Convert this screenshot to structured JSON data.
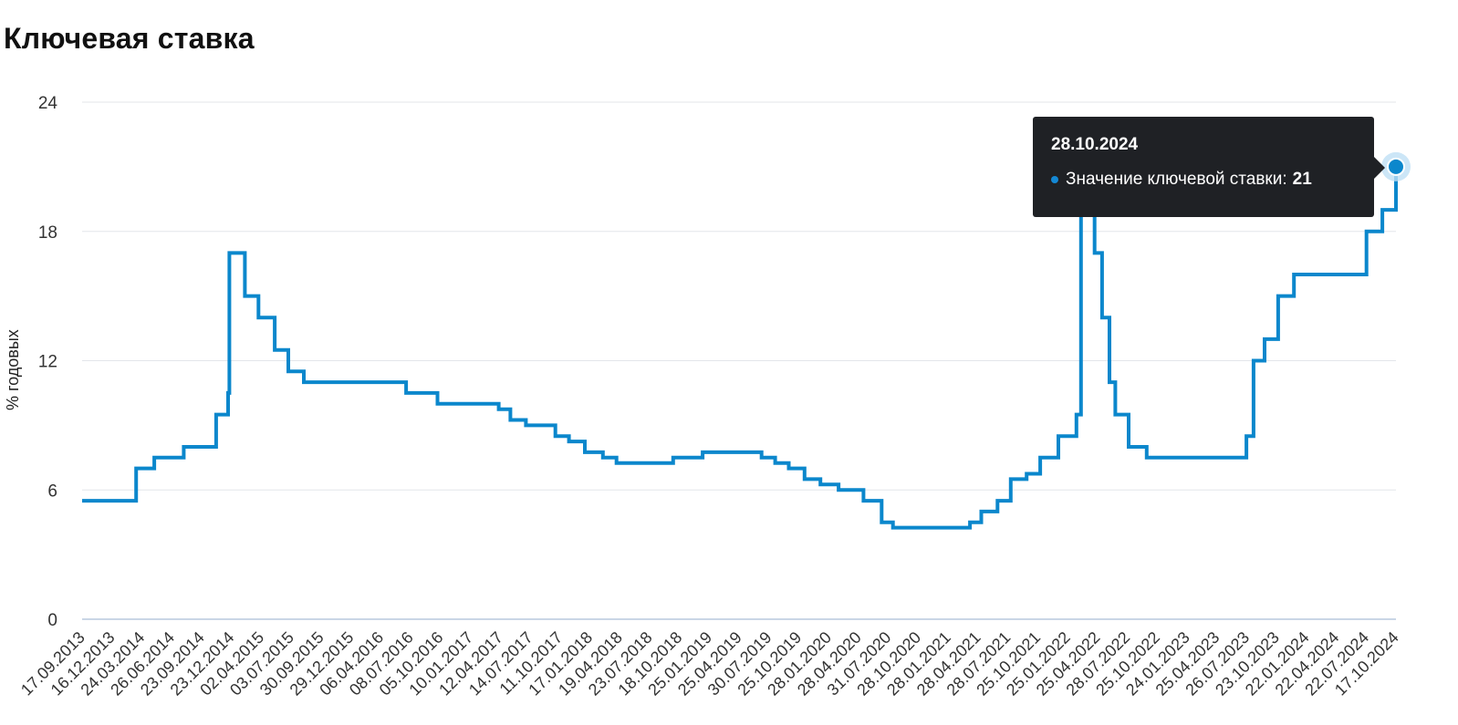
{
  "chart_data": {
    "type": "line",
    "title": "Ключевая ставка",
    "ylabel": "% годовых",
    "ylim": [
      0,
      24
    ],
    "yticks": [
      0,
      6,
      12,
      18,
      24
    ],
    "xlim": [
      "2013-09-17",
      "2024-10-28"
    ],
    "grid": true,
    "line_color": "#0b87cc",
    "step": true,
    "xtick_labels": [
      "17.09.2013",
      "16.12.2013",
      "24.03.2014",
      "26.06.2014",
      "23.09.2014",
      "23.12.2014",
      "02.04.2015",
      "03.07.2015",
      "30.09.2015",
      "29.12.2015",
      "06.04.2016",
      "08.07.2016",
      "05.10.2016",
      "10.01.2017",
      "12.04.2017",
      "14.07.2017",
      "11.10.2017",
      "17.01.2018",
      "19.04.2018",
      "23.07.2018",
      "18.10.2018",
      "25.01.2019",
      "25.04.2019",
      "30.07.2019",
      "25.10.2019",
      "28.01.2020",
      "28.04.2020",
      "31.07.2020",
      "28.10.2020",
      "28.01.2021",
      "28.04.2021",
      "28.07.2021",
      "25.10.2021",
      "25.01.2022",
      "25.04.2022",
      "28.07.2022",
      "25.10.2022",
      "24.01.2023",
      "25.04.2023",
      "26.07.2023",
      "23.10.2023",
      "22.01.2024",
      "22.04.2024",
      "22.07.2024",
      "17.10.2024"
    ],
    "series": [
      {
        "points": [
          [
            "2013-09-17",
            5.5
          ],
          [
            "2014-03-03",
            7.0
          ],
          [
            "2014-04-28",
            7.5
          ],
          [
            "2014-07-28",
            8.0
          ],
          [
            "2014-11-05",
            9.5
          ],
          [
            "2014-12-12",
            10.5
          ],
          [
            "2014-12-16",
            17.0
          ],
          [
            "2015-02-02",
            15.0
          ],
          [
            "2015-03-16",
            14.0
          ],
          [
            "2015-05-05",
            12.5
          ],
          [
            "2015-06-16",
            11.5
          ],
          [
            "2015-08-03",
            11.0
          ],
          [
            "2016-06-14",
            10.5
          ],
          [
            "2016-09-19",
            10.0
          ],
          [
            "2017-03-27",
            9.75
          ],
          [
            "2017-05-02",
            9.25
          ],
          [
            "2017-06-19",
            9.0
          ],
          [
            "2017-09-18",
            8.5
          ],
          [
            "2017-10-30",
            8.25
          ],
          [
            "2017-12-18",
            7.75
          ],
          [
            "2018-02-12",
            7.5
          ],
          [
            "2018-03-26",
            7.25
          ],
          [
            "2018-09-17",
            7.5
          ],
          [
            "2018-12-17",
            7.75
          ],
          [
            "2019-06-17",
            7.5
          ],
          [
            "2019-07-29",
            7.25
          ],
          [
            "2019-09-09",
            7.0
          ],
          [
            "2019-10-28",
            6.5
          ],
          [
            "2019-12-16",
            6.25
          ],
          [
            "2020-02-10",
            6.0
          ],
          [
            "2020-04-27",
            5.5
          ],
          [
            "2020-06-22",
            4.5
          ],
          [
            "2020-07-27",
            4.25
          ],
          [
            "2021-03-22",
            4.5
          ],
          [
            "2021-04-26",
            5.0
          ],
          [
            "2021-06-15",
            5.5
          ],
          [
            "2021-07-26",
            6.5
          ],
          [
            "2021-09-13",
            6.75
          ],
          [
            "2021-10-25",
            7.5
          ],
          [
            "2021-12-20",
            8.5
          ],
          [
            "2022-02-14",
            9.5
          ],
          [
            "2022-02-28",
            20.0
          ],
          [
            "2022-04-11",
            17.0
          ],
          [
            "2022-05-04",
            14.0
          ],
          [
            "2022-05-27",
            11.0
          ],
          [
            "2022-06-14",
            9.5
          ],
          [
            "2022-07-25",
            8.0
          ],
          [
            "2022-09-19",
            7.5
          ],
          [
            "2023-07-24",
            8.5
          ],
          [
            "2023-08-15",
            12.0
          ],
          [
            "2023-09-18",
            13.0
          ],
          [
            "2023-10-30",
            15.0
          ],
          [
            "2023-12-18",
            16.0
          ],
          [
            "2024-07-29",
            18.0
          ],
          [
            "2024-09-16",
            19.0
          ],
          [
            "2024-10-28",
            21.0
          ]
        ]
      }
    ],
    "highlight": {
      "x": "2024-10-28",
      "y": 21
    }
  },
  "tooltip": {
    "date": "28.10.2024",
    "label": "Значение ключевой ставки:",
    "value": "21"
  }
}
